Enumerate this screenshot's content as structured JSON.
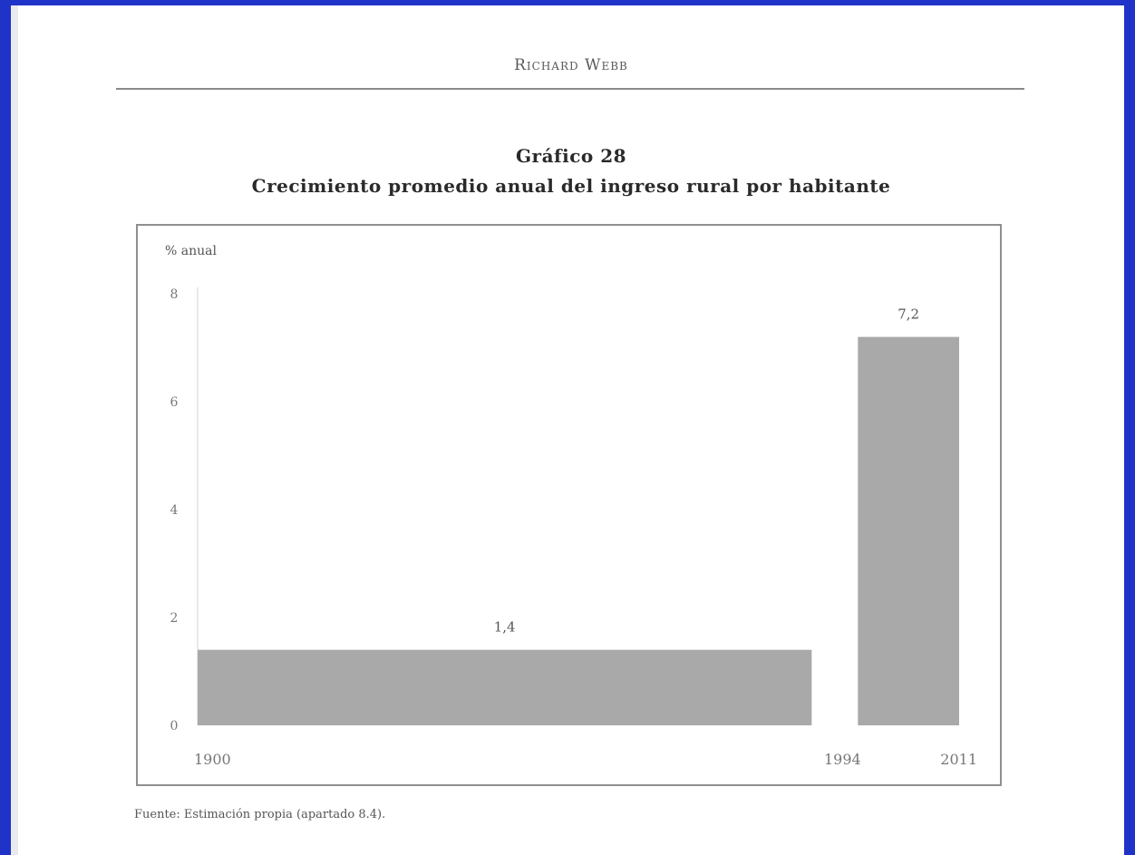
{
  "running_head": "Richard Webb",
  "figure": {
    "number": "Gráfico 28",
    "title": "Crecimiento promedio anual del ingreso rural por habitante"
  },
  "source_note": "Fuente: Estimación propia (apartado 8.4).",
  "colors": {
    "bar_fill": "#a9a9a9",
    "frame": "#1f33c8",
    "text": "#2a2a2a"
  },
  "chart_data": {
    "type": "bar",
    "ylabel": "% anual",
    "xlabel": "",
    "ylim": [
      0,
      8
    ],
    "yticks": [
      0,
      2,
      4,
      6,
      8
    ],
    "ytick_labels": [
      "0",
      "2",
      "4",
      "6",
      "8"
    ],
    "x_ticks": [
      1900,
      1994,
      2011
    ],
    "x_tick_labels": [
      "1900",
      "1994",
      "2011"
    ],
    "bars": [
      {
        "x_start": 1900,
        "x_end": 1994,
        "value": 1.4,
        "label": "1,4"
      },
      {
        "x_start": 1994,
        "x_end": 2011,
        "value": 7.2,
        "label": "7,2"
      }
    ],
    "grid": false,
    "legend": "none"
  }
}
